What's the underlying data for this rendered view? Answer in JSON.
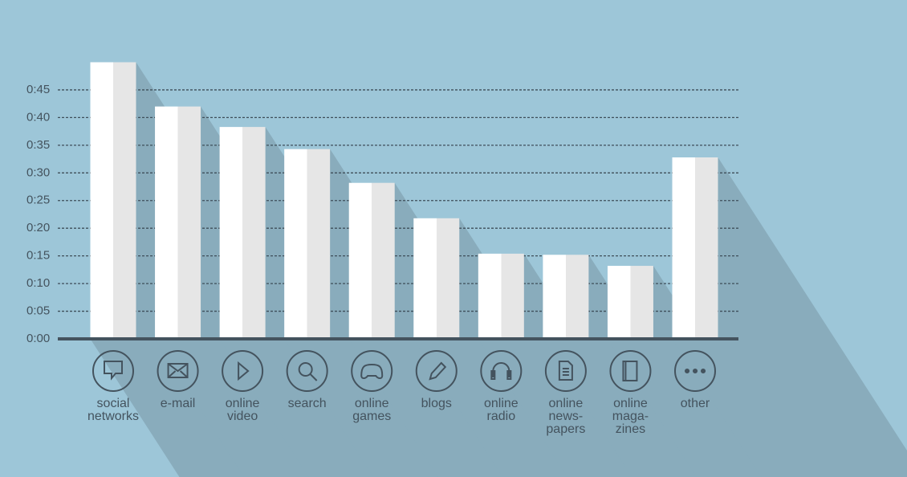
{
  "chart_data": {
    "type": "bar",
    "categories": [
      "social\nnetworks",
      "e-mail",
      "online\nvideo",
      "search",
      "online\ngames",
      "blogs",
      "online\nradio",
      "online\nnews-\npapers",
      "online\nmaga-\nzines",
      "other"
    ],
    "values": [
      50,
      42,
      38.3,
      34.3,
      28.2,
      21.8,
      15.4,
      15.2,
      13.2,
      32.8
    ],
    "color": "#ffffff",
    "ylim": [
      0,
      50
    ],
    "yticks": [
      {
        "value": 0,
        "label": "0:00"
      },
      {
        "value": 5,
        "label": "0:05"
      },
      {
        "value": 10,
        "label": "0:10"
      },
      {
        "value": 15,
        "label": "0:15"
      },
      {
        "value": 20,
        "label": "0:20"
      },
      {
        "value": 25,
        "label": "0:25"
      },
      {
        "value": 30,
        "label": "0:30"
      },
      {
        "value": 35,
        "label": "0:35"
      },
      {
        "value": 40,
        "label": "0:40"
      },
      {
        "value": 45,
        "label": "0:45"
      }
    ],
    "grid": true
  }
}
